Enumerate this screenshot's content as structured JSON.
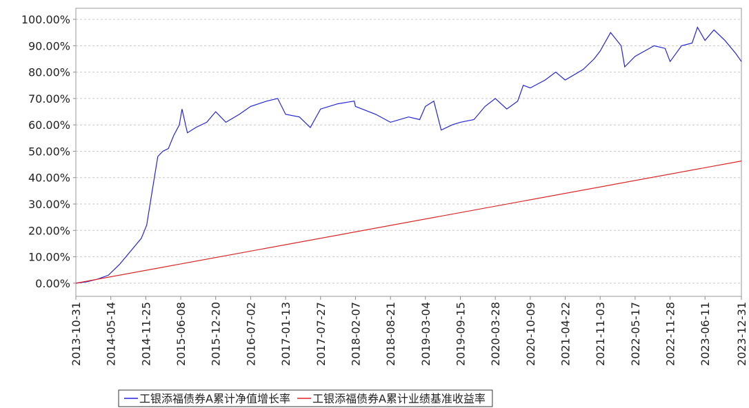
{
  "chart_data": {
    "type": "line",
    "xlim": [
      "2013-10-31",
      "2023-12-31"
    ],
    "xticks": [
      "2013-10-31",
      "2014-05-14",
      "2014-11-25",
      "2015-06-08",
      "2015-12-20",
      "2016-07-02",
      "2017-01-13",
      "2017-07-27",
      "2018-02-07",
      "2018-08-21",
      "2019-03-04",
      "2019-09-15",
      "2020-03-28",
      "2020-10-09",
      "2021-04-22",
      "2021-11-03",
      "2022-05-17",
      "2022-11-28",
      "2023-06-11",
      "2023-12-31"
    ],
    "ylim": [
      -5,
      104.2
    ],
    "yticks": [
      {
        "value": 0,
        "label": "0.00%"
      },
      {
        "value": 10,
        "label": "10.00%"
      },
      {
        "value": 20,
        "label": "20.00%"
      },
      {
        "value": 30,
        "label": "30.00%"
      },
      {
        "value": 40,
        "label": "40.00%"
      },
      {
        "value": 50,
        "label": "50.00%"
      },
      {
        "value": 60,
        "label": "60.00%"
      },
      {
        "value": 70,
        "label": "70.00%"
      },
      {
        "value": 80,
        "label": "80.00%"
      },
      {
        "value": 90,
        "label": "90.00%"
      },
      {
        "value": 100,
        "label": "100.00%"
      }
    ],
    "grid": true,
    "legend": "bottom",
    "series": [
      {
        "name": "工银添福债券A累计净值增长率",
        "color": "#2222dd",
        "x": [
          "2013-10-31",
          "2013-12-31",
          "2014-02-28",
          "2014-04-30",
          "2014-06-30",
          "2014-08-31",
          "2014-10-31",
          "2014-11-30",
          "2014-12-31",
          "2015-01-31",
          "2015-02-28",
          "2015-03-31",
          "2015-04-30",
          "2015-05-31",
          "2015-06-15",
          "2015-07-15",
          "2015-08-31",
          "2015-10-31",
          "2015-12-20",
          "2016-02-15",
          "2016-04-30",
          "2016-07-02",
          "2016-09-30",
          "2016-11-30",
          "2017-01-13",
          "2017-03-31",
          "2017-05-31",
          "2017-07-27",
          "2017-10-31",
          "2018-01-31",
          "2018-02-07",
          "2018-05-31",
          "2018-08-21",
          "2018-11-30",
          "2019-01-31",
          "2019-03-04",
          "2019-04-20",
          "2019-05-31",
          "2019-07-31",
          "2019-09-15",
          "2019-11-30",
          "2020-01-31",
          "2020-03-28",
          "2020-05-31",
          "2020-07-31",
          "2020-08-31",
          "2020-10-09",
          "2020-12-31",
          "2021-02-28",
          "2021-04-22",
          "2021-07-31",
          "2021-09-30",
          "2021-11-03",
          "2021-12-31",
          "2022-02-28",
          "2022-03-20",
          "2022-05-17",
          "2022-08-31",
          "2022-10-31",
          "2022-11-28",
          "2023-01-31",
          "2023-03-31",
          "2023-04-30",
          "2023-06-11",
          "2023-07-31",
          "2023-09-30",
          "2023-11-30",
          "2023-12-31"
        ],
        "values": [
          0,
          0.5,
          1.5,
          3,
          7,
          12,
          17,
          22,
          35,
          48,
          50,
          51,
          56,
          60,
          66,
          57,
          59,
          61,
          65,
          61,
          64,
          67,
          69,
          70,
          64,
          63,
          59,
          66,
          68,
          69,
          67,
          64,
          61,
          63,
          62,
          67,
          69,
          58,
          60,
          61,
          62,
          67,
          70,
          66,
          69,
          75,
          74,
          77,
          80,
          77,
          81,
          85,
          88,
          95,
          90,
          82,
          86,
          90,
          89,
          84,
          90,
          91,
          97,
          92,
          96,
          92,
          87,
          84
        ]
      },
      {
        "name": "工银添福债券A累计业绩基准收益率",
        "color": "#dd2222",
        "x": [
          "2013-10-31",
          "2023-12-31"
        ],
        "values": [
          0,
          46.3
        ]
      }
    ]
  }
}
